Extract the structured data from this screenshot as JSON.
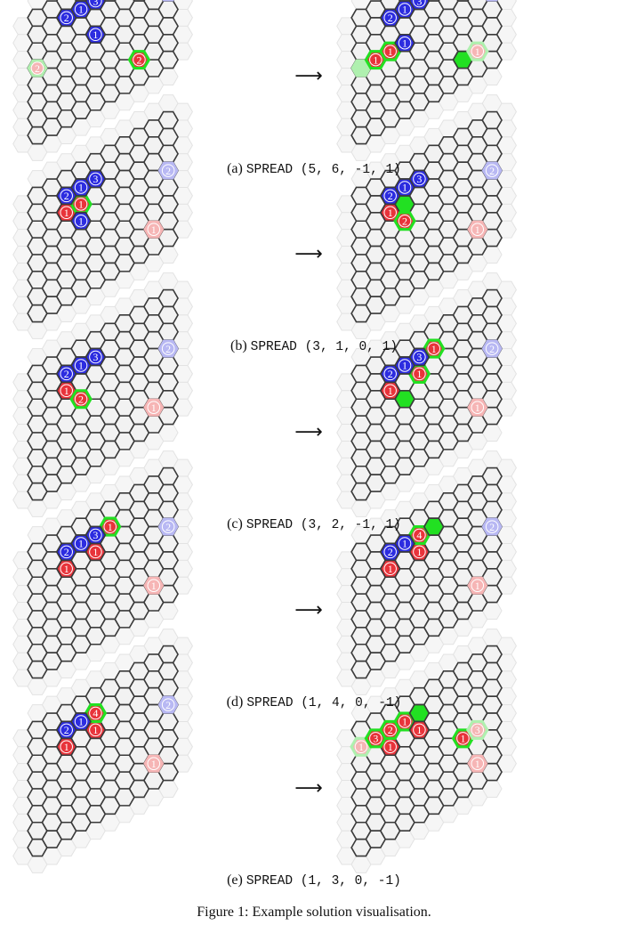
{
  "figure_caption": "Figure 1: Example solution visualisation.",
  "arrow": "⟶",
  "colors": {
    "board_fill": "#f2f2f2",
    "board_stroke": "#3a3a3a",
    "outer_fill": "#f6f6f6",
    "outer_stroke": "#e3e3e3",
    "red": "#e8333a",
    "blue": "#2c2ce0",
    "green": "#22e022",
    "faded_red": "#f6b5b5",
    "faded_blue": "#b8b8f3",
    "faded_green": "#aff0af"
  },
  "panels": [
    {
      "label": "(a)",
      "move": "SPREAD (5, 6, -1, 1)",
      "before": [
        {
          "q": 0,
          "r": 3,
          "color": "faded_green",
          "text": "",
          "outline": null
        },
        {
          "q": 0,
          "r": 3,
          "color": "faded_red",
          "text": "2",
          "outline": null,
          "small": true
        },
        {
          "q": 2,
          "r": 1,
          "color": "blue",
          "text": "2"
        },
        {
          "q": 3,
          "r": 1,
          "color": "blue",
          "text": "1"
        },
        {
          "q": 4,
          "r": 3,
          "color": "blue",
          "text": "1"
        },
        {
          "q": 4,
          "r": 1,
          "color": "blue",
          "text": "3"
        },
        {
          "q": 7,
          "r": 6,
          "color": "red",
          "text": "2",
          "outline": "green"
        },
        {
          "q": 9,
          "r": 3,
          "color": "faded_blue",
          "text": "2"
        }
      ],
      "after": [
        {
          "q": 0,
          "r": 3,
          "color": "faded_green",
          "text": ""
        },
        {
          "q": 1,
          "r": 3,
          "color": "red",
          "text": "1",
          "outline": "green"
        },
        {
          "q": 2,
          "r": 3,
          "color": "red",
          "text": "1",
          "outline": "green"
        },
        {
          "q": 2,
          "r": 1,
          "color": "blue",
          "text": "2"
        },
        {
          "q": 3,
          "r": 1,
          "color": "blue",
          "text": "1"
        },
        {
          "q": 3,
          "r": 3,
          "color": "blue",
          "text": "1"
        },
        {
          "q": 4,
          "r": 1,
          "color": "blue",
          "text": "3"
        },
        {
          "q": 7,
          "r": 6,
          "color": "green",
          "text": ""
        },
        {
          "q": 8,
          "r": 6,
          "color": "faded_red",
          "text": "1",
          "outline": "faded_green"
        },
        {
          "q": 9,
          "r": 3,
          "color": "faded_blue",
          "text": "2"
        }
      ]
    },
    {
      "label": "(b)",
      "move": "SPREAD (3, 1, 0, 1)",
      "before": [
        {
          "q": 2,
          "r": 2,
          "color": "red",
          "text": "1"
        },
        {
          "q": 3,
          "r": 2,
          "color": "red",
          "text": "1",
          "outline": "green"
        },
        {
          "q": 2,
          "r": 1,
          "color": "blue",
          "text": "2"
        },
        {
          "q": 3,
          "r": 1,
          "color": "blue",
          "text": "1"
        },
        {
          "q": 3,
          "r": 3,
          "color": "blue",
          "text": "1"
        },
        {
          "q": 4,
          "r": 1,
          "color": "blue",
          "text": "3"
        },
        {
          "q": 8,
          "r": 6,
          "color": "faded_red",
          "text": "1"
        },
        {
          "q": 9,
          "r": 3,
          "color": "faded_blue",
          "text": "2"
        }
      ],
      "after": [
        {
          "q": 2,
          "r": 2,
          "color": "red",
          "text": "1"
        },
        {
          "q": 3,
          "r": 2,
          "color": "green",
          "text": ""
        },
        {
          "q": 3,
          "r": 3,
          "color": "red",
          "text": "2",
          "outline": "green"
        },
        {
          "q": 2,
          "r": 1,
          "color": "blue",
          "text": "2"
        },
        {
          "q": 3,
          "r": 1,
          "color": "blue",
          "text": "1"
        },
        {
          "q": 4,
          "r": 1,
          "color": "blue",
          "text": "3"
        },
        {
          "q": 8,
          "r": 6,
          "color": "faded_red",
          "text": "1"
        },
        {
          "q": 9,
          "r": 3,
          "color": "faded_blue",
          "text": "2"
        }
      ]
    },
    {
      "label": "(c)",
      "move": "SPREAD (3, 2, -1, 1)",
      "before": [
        {
          "q": 2,
          "r": 2,
          "color": "red",
          "text": "1"
        },
        {
          "q": 3,
          "r": 3,
          "color": "red",
          "text": "2",
          "outline": "green"
        },
        {
          "q": 2,
          "r": 1,
          "color": "blue",
          "text": "2"
        },
        {
          "q": 3,
          "r": 1,
          "color": "blue",
          "text": "1"
        },
        {
          "q": 4,
          "r": 1,
          "color": "blue",
          "text": "3"
        },
        {
          "q": 8,
          "r": 6,
          "color": "faded_red",
          "text": "1"
        },
        {
          "q": 9,
          "r": 3,
          "color": "faded_blue",
          "text": "2"
        }
      ],
      "after": [
        {
          "q": 2,
          "r": 2,
          "color": "red",
          "text": "1"
        },
        {
          "q": 3,
          "r": 3,
          "color": "green",
          "text": ""
        },
        {
          "q": 4,
          "r": 2,
          "color": "red",
          "text": "1",
          "outline": "green"
        },
        {
          "q": 5,
          "r": 1,
          "color": "red",
          "text": "1",
          "outline": "green"
        },
        {
          "q": 2,
          "r": 1,
          "color": "blue",
          "text": "2"
        },
        {
          "q": 3,
          "r": 1,
          "color": "blue",
          "text": "1"
        },
        {
          "q": 4,
          "r": 1,
          "color": "blue",
          "text": "3"
        },
        {
          "q": 8,
          "r": 6,
          "color": "faded_red",
          "text": "1"
        },
        {
          "q": 9,
          "r": 3,
          "color": "faded_blue",
          "text": "2"
        }
      ]
    },
    {
      "label": "(d)",
      "move": "SPREAD (1, 4, 0, -1)",
      "before": [
        {
          "q": 2,
          "r": 2,
          "color": "red",
          "text": "1"
        },
        {
          "q": 4,
          "r": 2,
          "color": "red",
          "text": "1"
        },
        {
          "q": 5,
          "r": 1,
          "color": "red",
          "text": "1",
          "outline": "green"
        },
        {
          "q": 2,
          "r": 1,
          "color": "blue",
          "text": "2"
        },
        {
          "q": 3,
          "r": 1,
          "color": "blue",
          "text": "1"
        },
        {
          "q": 4,
          "r": 1,
          "color": "blue",
          "text": "3"
        },
        {
          "q": 8,
          "r": 6,
          "color": "faded_red",
          "text": "1"
        },
        {
          "q": 9,
          "r": 3,
          "color": "faded_blue",
          "text": "2"
        }
      ],
      "after": [
        {
          "q": 2,
          "r": 2,
          "color": "red",
          "text": "1"
        },
        {
          "q": 4,
          "r": 2,
          "color": "red",
          "text": "1"
        },
        {
          "q": 4,
          "r": 1,
          "color": "red",
          "text": "4",
          "outline": "green"
        },
        {
          "q": 5,
          "r": 1,
          "color": "green",
          "text": ""
        },
        {
          "q": 2,
          "r": 1,
          "color": "blue",
          "text": "2"
        },
        {
          "q": 3,
          "r": 1,
          "color": "blue",
          "text": "1"
        },
        {
          "q": 8,
          "r": 6,
          "color": "faded_red",
          "text": "1"
        },
        {
          "q": 9,
          "r": 3,
          "color": "faded_blue",
          "text": "2"
        }
      ]
    },
    {
      "label": "(e)",
      "move": "SPREAD (1, 3, 0, -1)",
      "before": [
        {
          "q": 2,
          "r": 2,
          "color": "red",
          "text": "1"
        },
        {
          "q": 4,
          "r": 2,
          "color": "red",
          "text": "1"
        },
        {
          "q": 4,
          "r": 1,
          "color": "red",
          "text": "4",
          "outline": "green"
        },
        {
          "q": 2,
          "r": 1,
          "color": "blue",
          "text": "2"
        },
        {
          "q": 3,
          "r": 1,
          "color": "blue",
          "text": "1"
        },
        {
          "q": 8,
          "r": 6,
          "color": "faded_red",
          "text": "1"
        },
        {
          "q": 9,
          "r": 3,
          "color": "faded_blue",
          "text": "2"
        }
      ],
      "after": [
        {
          "q": 2,
          "r": 2,
          "color": "red",
          "text": "1"
        },
        {
          "q": 0,
          "r": 1,
          "color": "faded_red",
          "text": "1",
          "outline": "faded_green"
        },
        {
          "q": 1,
          "r": 1,
          "color": "red",
          "text": "3",
          "outline": "green"
        },
        {
          "q": 2,
          "r": 1,
          "color": "red",
          "text": "2",
          "outline": "green"
        },
        {
          "q": 3,
          "r": 1,
          "color": "red",
          "text": "1",
          "outline": "green"
        },
        {
          "q": 4,
          "r": 1,
          "color": "green",
          "text": ""
        },
        {
          "q": 4,
          "r": 2,
          "color": "red",
          "text": "1"
        },
        {
          "q": 7,
          "r": 4,
          "color": "red",
          "text": "1",
          "outline": "green"
        },
        {
          "q": 8,
          "r": 4,
          "color": "faded_red",
          "text": "3",
          "outline": "faded_green"
        },
        {
          "q": 8,
          "r": 6,
          "color": "faded_red",
          "text": "1"
        }
      ]
    }
  ]
}
